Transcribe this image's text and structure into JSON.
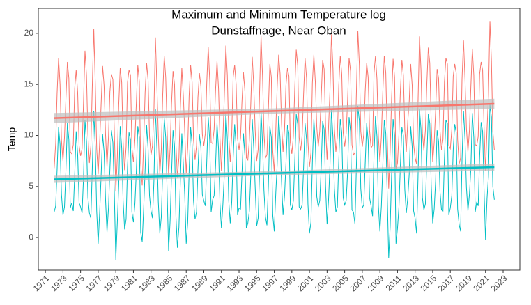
{
  "chart_data": {
    "type": "line",
    "title": "Maximum and Minimum Temperature log",
    "subtitle": "Dunstaffnage, Near Oban",
    "y_label": "Temp",
    "xlim": [
      1970.2,
      2024.9
    ],
    "ylim": [
      -3.2,
      22.45
    ],
    "xticks": [
      1971,
      1973,
      1975,
      1977,
      1979,
      1981,
      1983,
      1985,
      1987,
      1989,
      1991,
      1993,
      1995,
      1997,
      1999,
      2001,
      2003,
      2005,
      2007,
      2009,
      2011,
      2013,
      2015,
      2017,
      2019,
      2021,
      2023
    ],
    "yticks": [
      0,
      5,
      10,
      15,
      20
    ],
    "x": [
      1972,
      1972.17,
      1972.33,
      1972.5,
      1972.67,
      1972.83,
      1973,
      1973.17,
      1973.33,
      1973.5,
      1973.67,
      1973.83,
      1974,
      1974.17,
      1974.33,
      1974.5,
      1974.67,
      1974.83,
      1975,
      1975.17,
      1975.33,
      1975.5,
      1975.67,
      1975.83,
      1976,
      1976.17,
      1976.33,
      1976.5,
      1976.67,
      1976.83,
      1977,
      1977.17,
      1977.33,
      1977.5,
      1977.67,
      1977.83,
      1978,
      1978.17,
      1978.33,
      1978.5,
      1978.67,
      1978.83,
      1979,
      1979.17,
      1979.33,
      1979.5,
      1979.67,
      1979.83,
      1980,
      1980.17,
      1980.33,
      1980.5,
      1980.67,
      1980.83,
      1981,
      1981.17,
      1981.33,
      1981.5,
      1981.67,
      1981.83,
      1982,
      1982.17,
      1982.33,
      1982.5,
      1982.67,
      1982.83,
      1983,
      1983.17,
      1983.33,
      1983.5,
      1983.67,
      1983.83,
      1984,
      1984.17,
      1984.33,
      1984.5,
      1984.67,
      1984.83,
      1985,
      1985.17,
      1985.33,
      1985.5,
      1985.67,
      1985.83,
      1986,
      1986.17,
      1986.33,
      1986.5,
      1986.67,
      1986.83,
      1987,
      1987.17,
      1987.33,
      1987.5,
      1987.67,
      1987.83,
      1988,
      1988.17,
      1988.33,
      1988.5,
      1988.67,
      1988.83,
      1989,
      1989.17,
      1989.33,
      1989.5,
      1989.67,
      1989.83,
      1990,
      1990.17,
      1990.33,
      1990.5,
      1990.67,
      1990.83,
      1991,
      1991.17,
      1991.33,
      1991.5,
      1991.67,
      1991.83,
      1992,
      1992.17,
      1992.33,
      1992.5,
      1992.67,
      1992.83,
      1993,
      1993.17,
      1993.33,
      1993.5,
      1993.67,
      1993.83,
      1994,
      1994.17,
      1994.33,
      1994.5,
      1994.67,
      1994.83,
      1995,
      1995.17,
      1995.33,
      1995.5,
      1995.67,
      1995.83,
      1996,
      1996.17,
      1996.33,
      1996.5,
      1996.67,
      1996.83,
      1997,
      1997.17,
      1997.33,
      1997.5,
      1997.67,
      1997.83,
      1998,
      1998.17,
      1998.33,
      1998.5,
      1998.67,
      1998.83,
      1999,
      1999.17,
      1999.33,
      1999.5,
      1999.67,
      1999.83,
      2000,
      2000.17,
      2000.33,
      2000.5,
      2000.67,
      2000.83,
      2001,
      2001.17,
      2001.33,
      2001.5,
      2001.67,
      2001.83,
      2002,
      2002.17,
      2002.33,
      2002.5,
      2002.67,
      2002.83,
      2003,
      2003.17,
      2003.33,
      2003.5,
      2003.67,
      2003.83,
      2004,
      2004.17,
      2004.33,
      2004.5,
      2004.67,
      2004.83,
      2005,
      2005.17,
      2005.33,
      2005.5,
      2005.67,
      2005.83,
      2006,
      2006.17,
      2006.33,
      2006.5,
      2006.67,
      2006.83,
      2007,
      2007.17,
      2007.33,
      2007.5,
      2007.67,
      2007.83,
      2008,
      2008.17,
      2008.33,
      2008.5,
      2008.67,
      2008.83,
      2009,
      2009.17,
      2009.33,
      2009.5,
      2009.67,
      2009.83,
      2010,
      2010.17,
      2010.33,
      2010.5,
      2010.67,
      2010.83,
      2011,
      2011.17,
      2011.33,
      2011.5,
      2011.67,
      2011.83,
      2012,
      2012.17,
      2012.33,
      2012.5,
      2012.67,
      2012.83,
      2013,
      2013.17,
      2013.33,
      2013.5,
      2013.67,
      2013.83,
      2014,
      2014.17,
      2014.33,
      2014.5,
      2014.67,
      2014.83,
      2015,
      2015.17,
      2015.33,
      2015.5,
      2015.67,
      2015.83,
      2016,
      2016.17,
      2016.33,
      2016.5,
      2016.67,
      2016.83,
      2017,
      2017.17,
      2017.33,
      2017.5,
      2017.67,
      2017.83,
      2018,
      2018.17,
      2018.33,
      2018.5,
      2018.67,
      2018.83,
      2019,
      2019.17,
      2019.33,
      2019.5,
      2019.67,
      2019.83,
      2020,
      2020.17,
      2020.33,
      2020.5,
      2020.67,
      2020.83,
      2021,
      2021.17,
      2021.33,
      2021.5,
      2021.67,
      2021.83,
      2022
    ],
    "series": [
      {
        "color": "#F8766D",
        "values": [
          6.8,
          9.2,
          14.1,
          17.6,
          15.0,
          9.5,
          7.5,
          9.8,
          13.5,
          17.2,
          15.6,
          8.4,
          8.2,
          9.1,
          14.6,
          16.4,
          14.2,
          9.0,
          8.0,
          8.7,
          13.2,
          18.3,
          15.9,
          10.1,
          7.3,
          9.0,
          14.8,
          20.4,
          15.1,
          8.7,
          6.2,
          9.4,
          13.0,
          16.8,
          14.9,
          10.2,
          6.9,
          9.9,
          14.3,
          16.0,
          15.5,
          10.5,
          4.5,
          7.8,
          12.9,
          16.6,
          15.2,
          9.4,
          6.6,
          8.9,
          15.2,
          16.4,
          15.9,
          8.8,
          7.4,
          9.6,
          13.1,
          16.9,
          15.3,
          7.3,
          5.1,
          9.4,
          14.2,
          17.1,
          15.4,
          9.9,
          8.1,
          9.0,
          12.4,
          19.6,
          14.8,
          10.0,
          6.2,
          8.6,
          14.0,
          17.8,
          15.7,
          10.6,
          6.0,
          8.8,
          13.1,
          16.3,
          15.0,
          9.1,
          5.9,
          7.8,
          12.6,
          16.6,
          13.9,
          10.4,
          6.3,
          8.9,
          13.9,
          16.9,
          15.2,
          9.6,
          7.6,
          9.0,
          13.7,
          16.1,
          14.8,
          10.1,
          9.0,
          10.2,
          15.1,
          18.7,
          15.4,
          9.3,
          9.2,
          10.6,
          14.4,
          17.3,
          14.6,
          9.8,
          6.5,
          9.8,
          13.9,
          18.8,
          15.9,
          9.9,
          7.4,
          10.1,
          15.7,
          16.9,
          15.0,
          9.7,
          8.6,
          9.8,
          13.3,
          16.2,
          14.3,
          7.8,
          7.6,
          9.5,
          13.0,
          17.7,
          14.9,
          10.6,
          7.5,
          8.6,
          14.1,
          19.8,
          15.8,
          10.3,
          7.8,
          8.1,
          12.5,
          17.0,
          15.7,
          8.5,
          6.4,
          10.4,
          14.7,
          17.9,
          16.0,
          11.1,
          8.4,
          10.6,
          14.9,
          16.6,
          15.8,
          9.3,
          8.2,
          9.9,
          14.6,
          18.4,
          16.8,
          9.8,
          8.5,
          10.0,
          14.0,
          17.6,
          15.6,
          9.4,
          6.9,
          8.3,
          15.1,
          17.9,
          15.2,
          10.8,
          8.9,
          10.4,
          13.6,
          17.4,
          16.5,
          10.9,
          7.6,
          10.8,
          14.4,
          19.9,
          16.6,
          10.7,
          8.4,
          9.9,
          14.9,
          17.8,
          16.0,
          10.3,
          8.9,
          10.2,
          13.4,
          17.6,
          16.3,
          9.1,
          8.1,
          8.3,
          14.1,
          20.2,
          16.9,
          10.4,
          8.9,
          10.1,
          14.3,
          17.1,
          15.7,
          10.5,
          8.8,
          9.0,
          16.1,
          17.8,
          15.5,
          9.9,
          7.4,
          9.9,
          14.2,
          17.8,
          16.1,
          10.0,
          4.8,
          8.6,
          13.6,
          17.5,
          15.7,
          6.6,
          7.3,
          10.2,
          14.4,
          17.4,
          15.9,
          10.6,
          8.4,
          11.4,
          13.3,
          17.0,
          14.9,
          9.2,
          7.8,
          7.2,
          13.1,
          19.7,
          16.4,
          10.2,
          8.5,
          10.5,
          15.0,
          18.6,
          17.1,
          11.2,
          7.4,
          9.3,
          12.4,
          16.5,
          15.6,
          10.5,
          8.6,
          9.6,
          15.2,
          17.6,
          17.0,
          9.0,
          8.7,
          10.6,
          15.8,
          17.0,
          16.1,
          9.6,
          7.2,
          7.8,
          15.5,
          19.3,
          15.5,
          10.7,
          8.4,
          10.5,
          14.7,
          18.5,
          15.9,
          9.1,
          9.0,
          9.9,
          16.0,
          17.2,
          16.4,
          10.9,
          6.5,
          10.6,
          13.9,
          21.2,
          17.3,
          10.4,
          8.6
        ]
      },
      {
        "color": "#00BFC4",
        "values": [
          2.5,
          3.1,
          6.6,
          10.8,
          9.1,
          4.2,
          2.2,
          3.0,
          6.5,
          11.2,
          9.6,
          2.9,
          3.4,
          2.6,
          6.1,
          10.4,
          8.1,
          3.4,
          3.0,
          2.4,
          5.8,
          11.5,
          9.4,
          3.9,
          2.4,
          1.9,
          6.8,
          12.4,
          8.9,
          2.6,
          -0.6,
          2.5,
          6.0,
          10.1,
          8.4,
          3.8,
          0.5,
          2.9,
          6.7,
          10.5,
          9.3,
          4.4,
          -2.2,
          1.4,
          5.1,
          10.9,
          8.8,
          3.6,
          0.8,
          1.8,
          6.9,
          10.3,
          9.6,
          2.5,
          1.5,
          3.3,
          6.4,
          10.9,
          9.8,
          0.5,
          -0.4,
          2.9,
          6.6,
          11.0,
          8.7,
          4.1,
          2.6,
          1.9,
          5.5,
          12.6,
          8.7,
          3.5,
          0.4,
          2.0,
          6.6,
          11.7,
          9.8,
          4.5,
          -1.3,
          1.6,
          6.1,
          10.5,
          9.0,
          2.1,
          -1.0,
          1.0,
          5.4,
          10.2,
          7.2,
          4.2,
          -0.6,
          1.5,
          6.5,
          10.8,
          9.1,
          3.6,
          1.8,
          2.5,
          6.6,
          10.1,
          8.8,
          4.2,
          3.6,
          3.1,
          7.4,
          11.8,
          9.5,
          2.5,
          3.7,
          4.1,
          7.0,
          11.2,
          8.7,
          3.4,
          0.9,
          3.3,
          6.2,
          12.3,
          9.7,
          3.6,
          1.4,
          3.5,
          7.8,
          11.1,
          8.9,
          2.2,
          2.9,
          2.8,
          6.2,
          10.2,
          8.0,
          0.9,
          1.4,
          2.6,
          6.0,
          11.6,
          8.8,
          5.0,
          1.1,
          1.9,
          6.4,
          12.4,
          9.2,
          4.6,
          2.0,
          1.2,
          5.0,
          10.9,
          9.8,
          2.2,
          0.6,
          4.3,
          7.1,
          11.9,
          9.6,
          5.4,
          2.2,
          4.1,
          7.2,
          11.0,
          10.2,
          3.2,
          2.7,
          3.6,
          7.4,
          12.1,
          11.1,
          3.0,
          2.8,
          3.2,
          6.8,
          11.2,
          9.6,
          3.3,
          0.4,
          1.5,
          7.3,
          11.6,
          9.2,
          4.0,
          3.0,
          3.6,
          6.7,
          11.4,
          10.6,
          5.0,
          1.3,
          3.7,
          7.1,
          12.6,
          9.8,
          4.8,
          2.5,
          3.0,
          7.5,
          11.6,
          10.3,
          3.9,
          3.2,
          3.6,
          6.4,
          11.8,
          10.4,
          2.7,
          2.5,
          1.3,
          6.9,
          12.9,
          11.4,
          4.8,
          2.9,
          3.2,
          7.2,
          11.2,
          9.5,
          3.9,
          3.1,
          2.1,
          8.1,
          11.9,
          9.9,
          3.1,
          0.6,
          3.1,
          7.0,
          11.5,
          10.2,
          4.3,
          -2.0,
          1.1,
          6.1,
          11.6,
          10.0,
          -0.6,
          0.9,
          3.1,
          7.1,
          10.8,
          10.0,
          4.7,
          2.4,
          3.9,
          6.2,
          10.9,
          8.9,
          2.6,
          1.9,
          0.4,
          5.8,
          12.6,
          10.6,
          3.9,
          2.7,
          3.3,
          7.6,
          12.1,
          11.2,
          5.2,
          1.4,
          2.8,
          5.5,
          10.5,
          9.4,
          4.5,
          2.7,
          2.6,
          7.7,
          11.5,
          11.2,
          2.2,
          2.9,
          4.1,
          8.6,
          11.1,
          10.3,
          2.8,
          1.3,
          0.6,
          7.6,
          12.4,
          9.6,
          4.9,
          2.6,
          4.2,
          6.7,
          12.2,
          9.8,
          2.5,
          3.5,
          3.1,
          7.9,
          11.3,
          10.4,
          4.7,
          -0.2,
          3.8,
          6.0,
          13.0,
          11.8,
          5.0,
          3.7
        ]
      }
    ],
    "trends": [
      {
        "color": "#F8766D",
        "band_color": "#bdbdbd",
        "x": [
          1972,
          1997,
          2022
        ],
        "values": [
          11.7,
          12.4,
          13.1
        ],
        "lower": [
          11.2,
          12.15,
          12.6
        ],
        "upper": [
          12.2,
          12.65,
          13.6
        ]
      },
      {
        "color": "#00BFC4",
        "band_color": "#bdbdbd",
        "x": [
          1972,
          1997,
          2022
        ],
        "values": [
          5.7,
          6.3,
          6.9
        ],
        "lower": [
          5.35,
          6.1,
          6.55
        ],
        "upper": [
          6.05,
          6.5,
          7.25
        ]
      }
    ]
  }
}
